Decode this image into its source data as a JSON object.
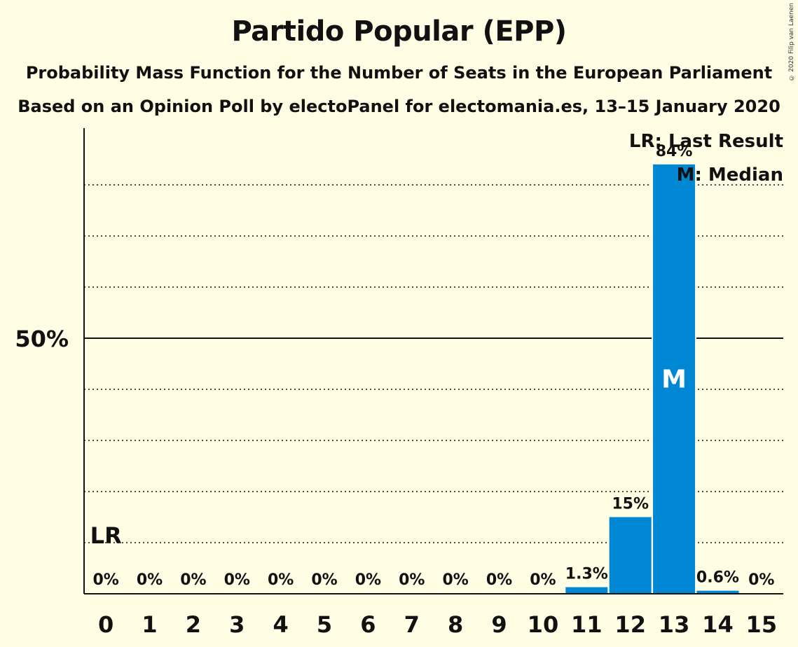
{
  "title": "Partido Popular (EPP)",
  "subtitle": "Probability Mass Function for the Number of Seats in the European Parliament",
  "subtitle2": "Based on an Opinion Poll by electoPanel for electomania.es, 13–15 January 2020",
  "copyright": "© 2020 Filip van Laenen",
  "legend": {
    "last_result": "LR: Last Result",
    "median": "M: Median"
  },
  "colors": {
    "background": "#fffde4",
    "bar": "#0087d4",
    "text": "#111111"
  },
  "chart_data": {
    "type": "bar",
    "categories": [
      "0",
      "1",
      "2",
      "3",
      "4",
      "5",
      "6",
      "7",
      "8",
      "9",
      "10",
      "11",
      "12",
      "13",
      "14",
      "15"
    ],
    "values": [
      0,
      0,
      0,
      0,
      0,
      0,
      0,
      0,
      0,
      0,
      0,
      1.3,
      15,
      84,
      0.6,
      0
    ],
    "labels": [
      "0%",
      "0%",
      "0%",
      "0%",
      "0%",
      "0%",
      "0%",
      "0%",
      "0%",
      "0%",
      "0%",
      "1.3%",
      "15%",
      "84%",
      "0.6%",
      "0%"
    ],
    "ylim": [
      0,
      91
    ],
    "y_tick_label": "50%",
    "y_tick_value": 50,
    "dotted_gridlines": [
      10,
      20,
      30,
      40,
      60,
      70,
      80
    ],
    "last_result_seat": 0,
    "last_result_marker": "LR",
    "median_seat": 13,
    "median_marker": "M"
  }
}
